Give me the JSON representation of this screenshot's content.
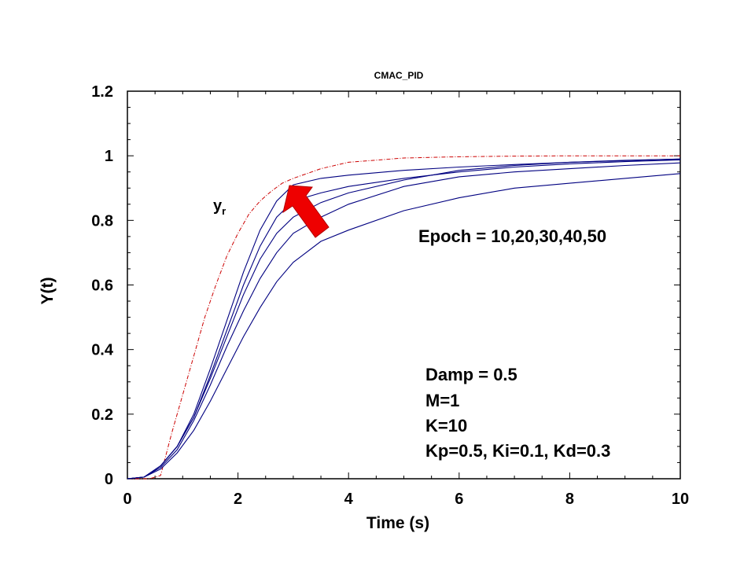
{
  "chart_data": {
    "type": "line",
    "title": "CMAC_PID",
    "xlabel": "Time (s)",
    "ylabel": "Y(t)",
    "xlim": [
      0,
      10
    ],
    "ylim": [
      0,
      1.2
    ],
    "xticks": [
      "0",
      "2",
      "4",
      "6",
      "8",
      "10"
    ],
    "yticks": [
      "0",
      "0.2",
      "0.4",
      "0.6",
      "0.8",
      "1",
      "1.2"
    ],
    "grid": false,
    "reference": {
      "label_main": "y",
      "label_sub": "r",
      "color": "#cc0000",
      "style": "dashed",
      "x": [
        0,
        0.4,
        0.6,
        0.8,
        1.0,
        1.2,
        1.4,
        1.6,
        1.8,
        2.0,
        2.2,
        2.4,
        2.6,
        2.8,
        3.0,
        3.5,
        4.0,
        5.0,
        6.0,
        7.0,
        8.0,
        9.0,
        10.0
      ],
      "values": [
        0,
        0,
        0.01,
        0.14,
        0.26,
        0.38,
        0.5,
        0.6,
        0.69,
        0.76,
        0.82,
        0.86,
        0.89,
        0.915,
        0.93,
        0.96,
        0.98,
        0.993,
        0.997,
        0.999,
        1.0,
        1.0,
        1.0
      ]
    },
    "series": [
      {
        "color": "#000080",
        "x": [
          0,
          0.3,
          0.6,
          0.9,
          1.2,
          1.5,
          1.8,
          2.1,
          2.4,
          2.7,
          3.0,
          3.5,
          4,
          5,
          6,
          7,
          8,
          9,
          10
        ],
        "values": [
          0,
          0.005,
          0.04,
          0.1,
          0.2,
          0.34,
          0.49,
          0.64,
          0.77,
          0.86,
          0.91,
          0.93,
          0.94,
          0.955,
          0.965,
          0.973,
          0.98,
          0.985,
          0.99
        ]
      },
      {
        "color": "#000080",
        "x": [
          0,
          0.3,
          0.6,
          0.9,
          1.2,
          1.5,
          1.8,
          2.1,
          2.4,
          2.7,
          3.0,
          3.5,
          4,
          5,
          6,
          7,
          8,
          9,
          10
        ],
        "values": [
          0,
          0.005,
          0.04,
          0.1,
          0.19,
          0.32,
          0.46,
          0.6,
          0.72,
          0.81,
          0.86,
          0.885,
          0.905,
          0.93,
          0.95,
          0.965,
          0.975,
          0.982,
          0.987
        ]
      },
      {
        "color": "#000080",
        "x": [
          0,
          0.3,
          0.6,
          0.9,
          1.2,
          1.5,
          1.8,
          2.1,
          2.4,
          2.7,
          3.0,
          3.5,
          4,
          5,
          6,
          7,
          8,
          9,
          10
        ],
        "values": [
          0,
          0.005,
          0.04,
          0.1,
          0.19,
          0.31,
          0.44,
          0.57,
          0.68,
          0.76,
          0.81,
          0.855,
          0.885,
          0.925,
          0.955,
          0.97,
          0.98,
          0.986,
          0.99
        ]
      },
      {
        "color": "#000080",
        "x": [
          0,
          0.3,
          0.6,
          0.9,
          1.2,
          1.5,
          1.8,
          2.1,
          2.4,
          2.7,
          3.0,
          3.5,
          4,
          5,
          6,
          7,
          8,
          9,
          10
        ],
        "values": [
          0,
          0.005,
          0.035,
          0.09,
          0.18,
          0.29,
          0.41,
          0.52,
          0.62,
          0.7,
          0.76,
          0.81,
          0.85,
          0.905,
          0.935,
          0.95,
          0.96,
          0.97,
          0.978
        ]
      },
      {
        "color": "#000080",
        "x": [
          0,
          0.3,
          0.6,
          0.9,
          1.2,
          1.5,
          1.8,
          2.1,
          2.4,
          2.7,
          3.0,
          3.5,
          4,
          5,
          6,
          7,
          8,
          9,
          10
        ],
        "values": [
          0,
          0.005,
          0.03,
          0.08,
          0.15,
          0.24,
          0.34,
          0.44,
          0.53,
          0.61,
          0.67,
          0.735,
          0.77,
          0.83,
          0.87,
          0.9,
          0.915,
          0.93,
          0.945
        ]
      }
    ],
    "arrow_color": "#ee0000",
    "annotations": {
      "epoch": "Epoch = 10,20,30,40,50",
      "damp": "Damp = 0.5",
      "m": "M=1",
      "k": "K=10",
      "pid": "Kp=0.5, Ki=0.1, Kd=0.3"
    }
  }
}
